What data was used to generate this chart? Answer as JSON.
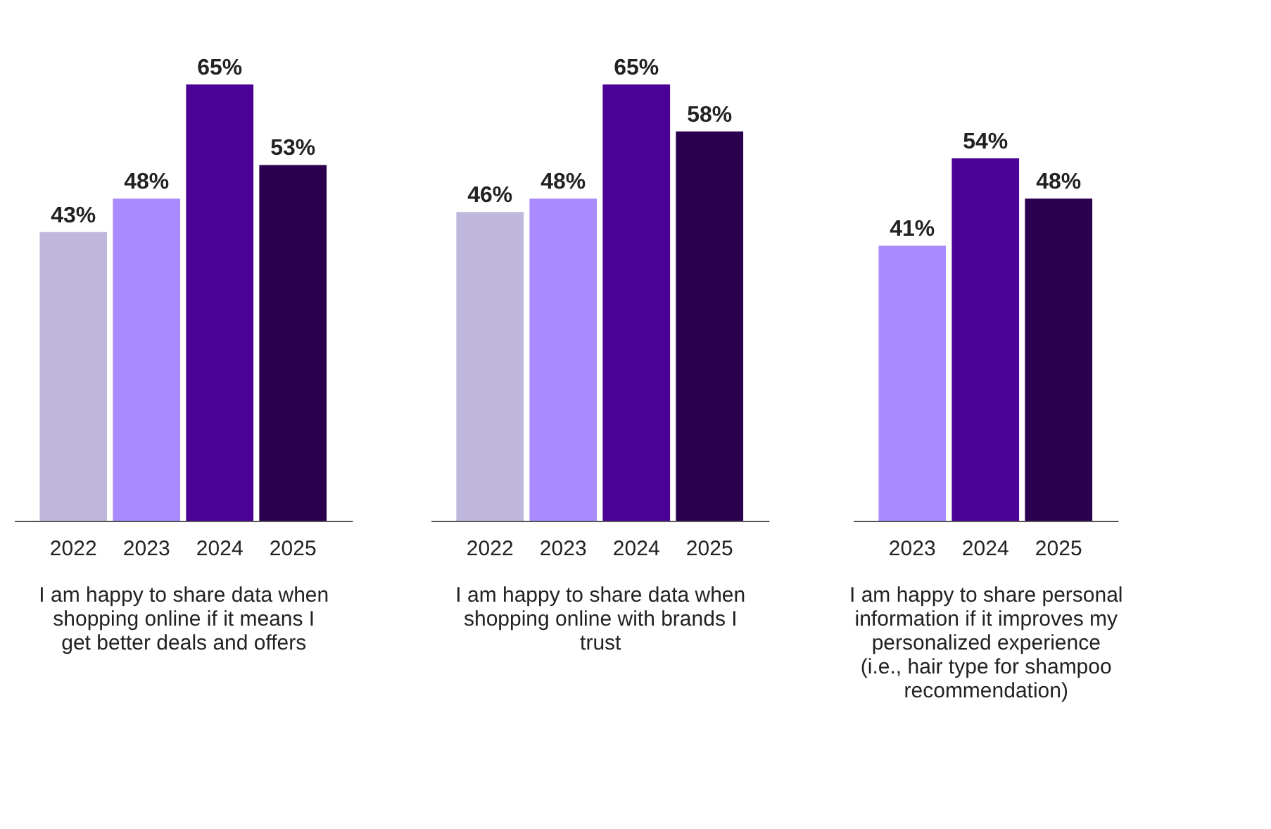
{
  "chart_data": [
    {
      "type": "bar",
      "categories": [
        "2022",
        "2023",
        "2024",
        "2025"
      ],
      "values": [
        43,
        48,
        65,
        53
      ],
      "colors": [
        "#bfb8dc",
        "#a98bfd",
        "#4b0096",
        "#2a004f"
      ],
      "data_labels": true,
      "value_labels": [
        "43%",
        "48%",
        "65%",
        "53%"
      ],
      "xlabel": "I am happy to share data when shopping online if it means I get better deals and offers"
    },
    {
      "type": "bar",
      "categories": [
        "2022",
        "2023",
        "2024",
        "2025"
      ],
      "values": [
        46,
        48,
        65,
        58
      ],
      "colors": [
        "#bfb8dc",
        "#a98bfd",
        "#4b0096",
        "#2a004f"
      ],
      "data_labels": true,
      "value_labels": [
        "46%",
        "48%",
        "65%",
        "58%"
      ],
      "xlabel": "I am happy to share data when shopping online with brands I trust"
    },
    {
      "type": "bar",
      "categories": [
        "2023",
        "2024",
        "2025"
      ],
      "values": [
        41,
        54,
        48
      ],
      "colors": [
        "#a98bfd",
        "#4b0096",
        "#2a004f"
      ],
      "data_labels": true,
      "value_labels": [
        "41%",
        "54%",
        "48%"
      ],
      "xlabel": "I am happy to share personal information if it improves my personalized experience (i.e., hair type for shampoo recommendation)"
    }
  ]
}
